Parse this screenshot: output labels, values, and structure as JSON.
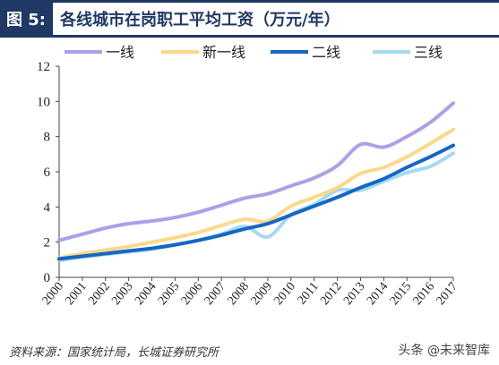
{
  "header": {
    "figure_label": "图 5:",
    "figure_title": "各线城市在岗职工平均工资（万元/年）"
  },
  "footer": {
    "source": "资料来源：国家统计局，长城证券研究所",
    "watermark": "头条 @未来智库"
  },
  "chart_data": {
    "type": "line",
    "x": [
      "2000",
      "2001",
      "2002",
      "2003",
      "2004",
      "2005",
      "2006",
      "2007",
      "2008",
      "2009",
      "2010",
      "2011",
      "2012",
      "2013",
      "2014",
      "2015",
      "2016",
      "2017"
    ],
    "ylim": [
      0,
      12
    ],
    "yticks": [
      0,
      2,
      4,
      6,
      8,
      10,
      12
    ],
    "legend_position": "top",
    "series": [
      {
        "name": "一线",
        "color": "#b09ee8",
        "values": [
          2.1,
          2.45,
          2.8,
          3.05,
          3.2,
          3.4,
          3.7,
          4.1,
          4.5,
          4.75,
          5.2,
          5.65,
          6.35,
          7.55,
          7.4,
          8.0,
          8.8,
          9.9
        ]
      },
      {
        "name": "新一线",
        "color": "#fbd98a",
        "values": [
          1.1,
          1.35,
          1.55,
          1.75,
          2.0,
          2.25,
          2.55,
          2.95,
          3.3,
          3.2,
          4.05,
          4.55,
          5.1,
          5.9,
          6.25,
          6.85,
          7.6,
          8.4
        ]
      },
      {
        "name": "二线",
        "color": "#1467c4",
        "values": [
          1.05,
          1.2,
          1.35,
          1.5,
          1.65,
          1.85,
          2.1,
          2.4,
          2.75,
          3.05,
          3.55,
          4.05,
          4.55,
          5.1,
          5.6,
          6.25,
          6.85,
          7.5
        ]
      },
      {
        "name": "三线",
        "color": "#a8d8f2",
        "values": [
          0.95,
          1.15,
          1.3,
          1.45,
          1.6,
          1.85,
          2.1,
          2.45,
          2.9,
          2.3,
          3.55,
          4.15,
          4.95,
          4.95,
          5.45,
          5.95,
          6.3,
          7.05
        ]
      }
    ]
  }
}
